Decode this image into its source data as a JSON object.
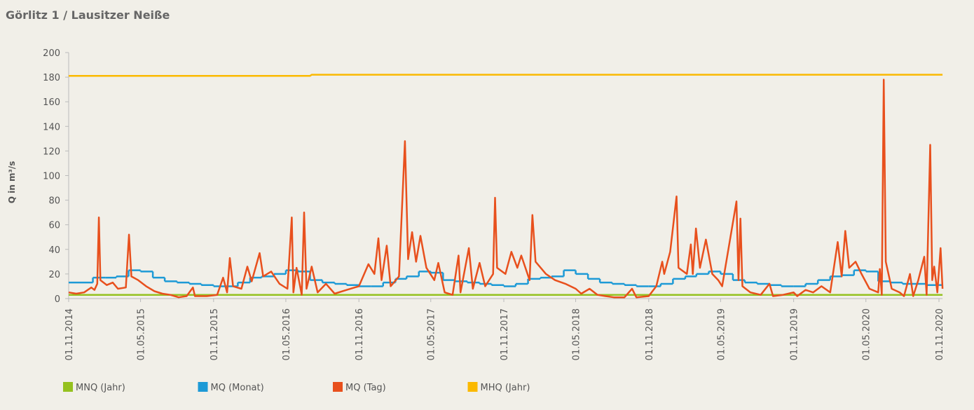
{
  "chart_data": {
    "type": "line",
    "title": "Görlitz 1 / Lausitzer Neiße",
    "y_label": "Q in m³/s",
    "xlim": [
      "01.11.2014",
      "10.11.2020"
    ],
    "xticks": [
      "01.11.2014",
      "01.05.2015",
      "01.11.2015",
      "01.05.2016",
      "01.11.2016",
      "01.05.2017",
      "01.11.2017",
      "01.05.2018",
      "01.11.2018",
      "01.05.2019",
      "01.11.2019",
      "01.05.2020",
      "01.11.2020"
    ],
    "ylim": [
      0,
      200
    ],
    "yticks": [
      0,
      20,
      40,
      60,
      80,
      100,
      120,
      140,
      160,
      180,
      200
    ],
    "grid": false,
    "legend": "bottom",
    "series": [
      {
        "name": "MNQ (Jahr)",
        "color": "#95c11f",
        "drawstyle": "default",
        "x": [
          "01.11.2014",
          "10.11.2020"
        ],
        "values": [
          3,
          3
        ]
      },
      {
        "name": "MQ (Monat)",
        "color": "#1d9ad6",
        "drawstyle": "steps-post",
        "x": [
          "01.11.2014",
          "01.12.2014",
          "01.01.2015",
          "01.02.2015",
          "01.03.2015",
          "01.04.2015",
          "01.05.2015",
          "01.06.2015",
          "01.07.2015",
          "01.08.2015",
          "01.09.2015",
          "01.10.2015",
          "01.11.2015",
          "01.12.2015",
          "01.01.2016",
          "01.02.2016",
          "01.03.2016",
          "01.04.2016",
          "01.05.2016",
          "01.06.2016",
          "01.07.2016",
          "01.08.2016",
          "01.09.2016",
          "01.10.2016",
          "01.11.2016",
          "01.12.2016",
          "01.01.2017",
          "01.02.2017",
          "01.03.2017",
          "01.04.2017",
          "01.05.2017",
          "01.06.2017",
          "01.07.2017",
          "01.08.2017",
          "01.09.2017",
          "01.10.2017",
          "01.11.2017",
          "01.12.2017",
          "01.01.2018",
          "01.02.2018",
          "01.03.2018",
          "01.04.2018",
          "01.05.2018",
          "01.06.2018",
          "01.07.2018",
          "01.08.2018",
          "01.09.2018",
          "01.10.2018",
          "01.11.2018",
          "01.12.2018",
          "01.01.2019",
          "01.02.2019",
          "01.03.2019",
          "01.04.2019",
          "01.05.2019",
          "01.06.2019",
          "01.07.2019",
          "01.08.2019",
          "01.09.2019",
          "01.10.2019",
          "01.11.2019",
          "01.12.2019",
          "01.01.2020",
          "01.02.2020",
          "01.03.2020",
          "01.04.2020",
          "01.05.2020",
          "01.06.2020",
          "01.07.2020",
          "01.08.2020",
          "01.09.2020",
          "01.10.2020",
          "01.11.2020"
        ],
        "values": [
          13,
          13,
          17,
          17,
          18,
          23,
          22,
          17,
          14,
          13,
          12,
          11,
          10,
          10,
          13,
          17,
          18,
          20,
          23,
          22,
          15,
          13,
          12,
          11,
          10,
          10,
          13,
          16,
          18,
          22,
          21,
          15,
          14,
          13,
          12,
          11,
          10,
          12,
          16,
          17,
          18,
          23,
          20,
          16,
          13,
          12,
          11,
          10,
          10,
          12,
          16,
          18,
          20,
          22,
          20,
          15,
          13,
          12,
          11,
          10,
          10,
          12,
          15,
          18,
          19,
          23,
          22,
          14,
          13,
          12,
          12,
          11,
          11
        ]
      },
      {
        "name": "MQ (Tag)",
        "color": "#e8501d",
        "drawstyle": "default",
        "x": [
          "01.11.2014",
          "20.11.2014",
          "10.12.2014",
          "28.12.2014",
          "05.01.2015",
          "12.01.2015",
          "16.01.2015",
          "20.01.2015",
          "05.02.2015",
          "20.02.2015",
          "05.03.2015",
          "25.03.2015",
          "02.04.2015",
          "08.04.2015",
          "25.04.2015",
          "15.05.2015",
          "05.06.2015",
          "25.06.2015",
          "15.07.2015",
          "05.08.2015",
          "25.08.2015",
          "10.09.2015",
          "15.09.2015",
          "15.10.2015",
          "10.11.2015",
          "25.11.2015",
          "05.12.2015",
          "12.12.2015",
          "20.12.2015",
          "10.01.2016",
          "25.01.2016",
          "05.02.2016",
          "25.02.2016",
          "05.03.2016",
          "25.03.2016",
          "15.04.2016",
          "05.05.2016",
          "16.05.2016",
          "20.05.2016",
          "28.05.2016",
          "10.06.2016",
          "16.06.2016",
          "22.06.2016",
          "05.07.2016",
          "20.07.2016",
          "10.08.2016",
          "01.09.2016",
          "01.10.2016",
          "01.11.2016",
          "25.11.2016",
          "10.12.2016",
          "20.12.2016",
          "28.12.2016",
          "10.01.2017",
          "20.01.2017",
          "10.02.2017",
          "25.02.2017",
          "05.03.2017",
          "15.03.2017",
          "25.03.2017",
          "05.04.2017",
          "20.04.2017",
          "10.05.2017",
          "20.05.2017",
          "05.06.2017",
          "25.06.2017",
          "10.07.2017",
          "15.07.2017",
          "05.08.2017",
          "15.08.2017",
          "01.09.2017",
          "15.09.2017",
          "05.10.2017",
          "10.10.2017",
          "15.10.2017",
          "05.11.2017",
          "20.11.2017",
          "05.12.2017",
          "15.12.2017",
          "05.01.2018",
          "12.01.2018",
          "20.01.2018",
          "15.02.2018",
          "10.03.2018",
          "05.04.2018",
          "01.05.2018",
          "15.05.2018",
          "05.06.2018",
          "25.06.2018",
          "15.07.2018",
          "05.08.2018",
          "01.09.2018",
          "20.09.2018",
          "01.10.2018",
          "01.11.2018",
          "20.11.2018",
          "05.12.2018",
          "10.12.2018",
          "25.12.2018",
          "10.01.2019",
          "15.01.2019",
          "05.02.2019",
          "15.02.2019",
          "20.02.2019",
          "28.02.2019",
          "10.03.2019",
          "25.03.2019",
          "10.04.2019",
          "25.04.2019",
          "05.05.2019",
          "10.06.2019",
          "15.06.2019",
          "20.06.2019",
          "25.06.2019",
          "15.07.2019",
          "10.08.2019",
          "01.09.2019",
          "10.09.2019",
          "05.10.2019",
          "01.11.2019",
          "10.11.2019",
          "01.12.2019",
          "20.12.2019",
          "10.01.2020",
          "01.02.2020",
          "20.02.2020",
          "01.03.2020",
          "10.03.2020",
          "20.03.2020",
          "05.04.2020",
          "20.04.2020",
          "10.05.2020",
          "01.06.2020",
          "05.06.2020",
          "10.06.2020",
          "15.06.2020",
          "20.06.2020",
          "05.07.2020",
          "25.07.2020",
          "05.08.2020",
          "20.08.2020",
          "28.08.2020",
          "10.09.2020",
          "25.09.2020",
          "01.10.2020",
          "10.10.2020",
          "15.10.2020",
          "20.10.2020",
          "28.10.2020",
          "05.11.2020",
          "10.11.2020"
        ],
        "values": [
          5,
          4,
          5,
          9,
          7,
          12,
          66,
          15,
          11,
          13,
          8,
          9,
          52,
          18,
          15,
          10,
          6,
          4,
          3,
          1,
          2,
          9,
          2,
          2,
          3,
          17,
          5,
          33,
          10,
          8,
          26,
          14,
          37,
          18,
          22,
          12,
          8,
          66,
          5,
          25,
          3,
          70,
          8,
          26,
          5,
          12,
          4,
          7,
          10,
          28,
          20,
          49,
          15,
          43,
          10,
          18,
          128,
          32,
          54,
          30,
          51,
          25,
          15,
          29,
          5,
          3,
          35,
          5,
          41,
          8,
          29,
          10,
          20,
          82,
          25,
          20,
          38,
          25,
          35,
          15,
          68,
          30,
          20,
          15,
          12,
          8,
          4,
          8,
          3,
          2,
          1,
          1,
          8,
          1,
          2,
          10,
          30,
          20,
          38,
          83,
          25,
          20,
          44,
          20,
          57,
          25,
          48,
          20,
          15,
          10,
          79,
          15,
          65,
          10,
          5,
          3,
          12,
          2,
          3,
          5,
          2,
          7,
          5,
          10,
          5,
          46,
          18,
          55,
          25,
          30,
          20,
          8,
          5,
          24,
          3,
          178,
          30,
          8,
          5,
          2,
          20,
          2,
          15,
          34,
          3,
          125,
          15,
          26,
          5,
          41,
          8
        ]
      },
      {
        "name": "MHQ (Jahr)",
        "color": "#fbb900",
        "drawstyle": "default",
        "x": [
          "01.11.2014",
          "01.07.2016",
          "05.07.2016",
          "10.11.2020"
        ],
        "values": [
          181,
          181,
          182,
          182
        ]
      }
    ]
  }
}
